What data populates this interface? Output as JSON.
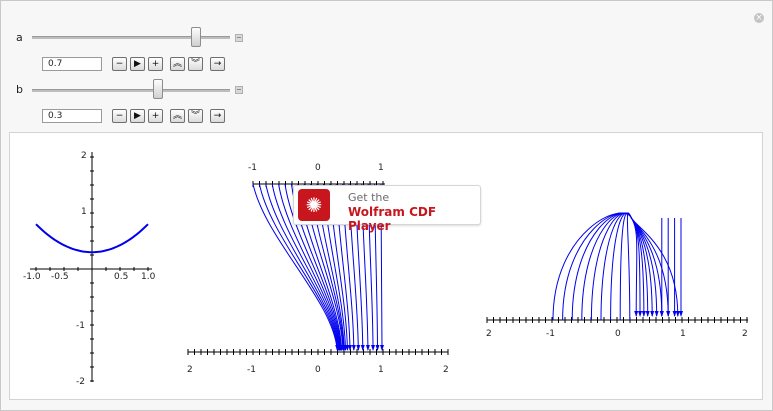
{
  "controls": [
    {
      "name": "a",
      "value": "0.7",
      "slider_fraction": 0.7,
      "buttons": [
        {
          "icon": "minus-icon",
          "glyph": "−"
        },
        {
          "icon": "play-icon",
          "glyph": "▶"
        },
        {
          "icon": "plus-icon",
          "glyph": "+"
        },
        {
          "icon": "faster-icon",
          "glyph": "︽"
        },
        {
          "icon": "slower-icon",
          "glyph": "︾"
        },
        {
          "icon": "direction-icon",
          "glyph": "→"
        }
      ]
    },
    {
      "name": "b",
      "value": "0.3",
      "slider_fraction": 0.3,
      "buttons": [
        {
          "icon": "minus-icon",
          "glyph": "−"
        },
        {
          "icon": "play-icon",
          "glyph": "▶"
        },
        {
          "icon": "plus-icon",
          "glyph": "+"
        },
        {
          "icon": "faster-icon",
          "glyph": "︽"
        },
        {
          "icon": "slower-icon",
          "glyph": "︾"
        },
        {
          "icon": "direction-icon",
          "glyph": "→"
        }
      ]
    }
  ],
  "close_icon": "close-icon",
  "cdf_banner": {
    "line1": "Get the",
    "line2": "Wolfram CDF Player",
    "logo_icon": "wolfram-spikey-icon"
  },
  "colors": {
    "curve": "#0000ee",
    "axis": "#000000",
    "banner_red": "#c7161d"
  },
  "chart_data": [
    {
      "type": "line",
      "title": "",
      "function": "x^2/2 + b",
      "x": [
        -1.0,
        -0.75,
        -0.5,
        -0.25,
        0,
        0.25,
        0.5,
        0.75,
        1.0
      ],
      "y": [
        0.8,
        0.58,
        0.43,
        0.33,
        0.3,
        0.33,
        0.43,
        0.58,
        0.8
      ],
      "xlim": [
        -1.0,
        1.0
      ],
      "ylim": [
        -2,
        2
      ],
      "x_tick_labels": [
        "-1.0",
        "-0.5",
        "0.5",
        "1.0"
      ],
      "y_tick_labels": [
        "2",
        "1",
        "-1",
        "-2"
      ]
    },
    {
      "type": "line",
      "title": "",
      "top_axis_tick_labels": [
        "-1",
        "0",
        "1"
      ],
      "bottom_axis_tick_labels": [
        "2",
        "-1",
        "0",
        "1",
        "2"
      ],
      "top_x_starts": [
        -1.0,
        -0.9,
        -0.8,
        -0.7,
        -0.6,
        -0.5,
        -0.4,
        -0.3,
        -0.2,
        -0.1,
        0,
        0.1,
        0.2,
        0.3,
        0.4,
        0.5,
        0.6,
        0.7,
        0.8,
        0.9,
        1.0
      ],
      "bottom_x_ends": [
        0.3,
        0.31,
        0.32,
        0.33,
        0.34,
        0.35,
        0.36,
        0.37,
        0.39,
        0.4,
        0.41,
        0.43,
        0.46,
        0.5,
        0.56,
        0.63,
        0.7,
        0.78,
        0.86,
        0.93,
        1.0
      ]
    },
    {
      "type": "line",
      "title": "",
      "axis_tick_labels": [
        "2",
        "-1",
        "0",
        "1",
        "2"
      ],
      "arc_starts": [
        -1.0,
        -0.85,
        -0.7,
        -0.55,
        -0.4,
        -0.25,
        -0.1,
        0.05,
        0.2
      ],
      "arc_ends": [
        0.3,
        0.36,
        0.42,
        0.48,
        0.55,
        0.62,
        0.7,
        0.8,
        0.95
      ],
      "peak_y": 1.5
    }
  ]
}
